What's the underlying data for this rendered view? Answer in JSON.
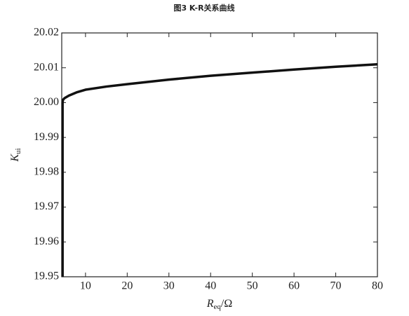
{
  "chart_data": {
    "type": "line",
    "title": "图3 K-R关系曲线",
    "x_label": {
      "symbol": "R",
      "subscript": "eq",
      "unit": "/Ω"
    },
    "y_label": {
      "symbol": "K",
      "subscript": "ui"
    },
    "x": [
      4.5,
      4.5,
      4.6,
      5,
      6,
      8,
      10,
      15,
      20,
      30,
      40,
      50,
      60,
      70,
      80
    ],
    "series": [
      {
        "color": "#111111",
        "values": [
          19.95,
          20.0,
          20.0008,
          20.0013,
          20.002,
          20.003,
          20.0037,
          20.0046,
          20.0053,
          20.0066,
          20.0077,
          20.0086,
          20.0095,
          20.0103,
          20.011
        ]
      }
    ],
    "xlim": [
      4.3,
      80
    ],
    "xticks": [
      10,
      20,
      30,
      40,
      50,
      60,
      70,
      80
    ],
    "ylim": [
      19.95,
      20.02
    ],
    "yticks": [
      19.95,
      19.96,
      19.97,
      19.98,
      19.99,
      {
        "value": 20,
        "label": "20.00"
      },
      20.01,
      20.02
    ],
    "grid": false
  }
}
